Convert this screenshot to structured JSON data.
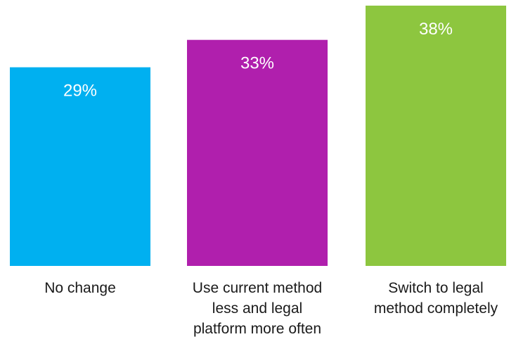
{
  "chart_data": {
    "type": "bar",
    "title": "",
    "xlabel": "",
    "ylabel": "",
    "categories": [
      [
        "No change"
      ],
      [
        "Use current method",
        "less and legal",
        "platform more often"
      ],
      [
        "Switch to legal",
        "method completely"
      ]
    ],
    "values": [
      29,
      33,
      38
    ],
    "data_labels": [
      "29%",
      "33%",
      "38%"
    ],
    "colors": [
      "#00b0f0",
      "#b01fad",
      "#8dc63f"
    ],
    "ylim": [
      0,
      38
    ],
    "grid": false,
    "legend": "none"
  }
}
